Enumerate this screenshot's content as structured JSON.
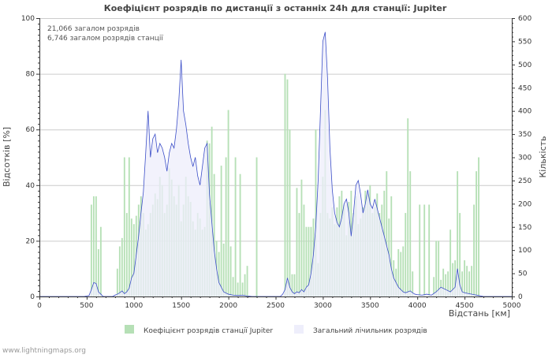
{
  "chart_data": {
    "type": "bar+line",
    "title": "Коефіцієнт розрядів по дистанції з останніх 24h для станції: Jupiter",
    "xlabel": "Відстань   [км]",
    "ylabel_left": "Відсотків   [%]",
    "ylabel_right": "Кількість",
    "xlim": [
      0,
      5000
    ],
    "ylim_left": [
      0,
      100
    ],
    "ylim_right": [
      0,
      600
    ],
    "x_ticks": [
      0,
      500,
      1000,
      1500,
      2000,
      2500,
      3000,
      3500,
      4000,
      4500,
      5000
    ],
    "y_left_ticks": [
      0,
      20,
      40,
      60,
      80,
      100
    ],
    "y_right_ticks": [
      0,
      50,
      100,
      150,
      200,
      250,
      300,
      350,
      400,
      450,
      500,
      550,
      600
    ],
    "annotations": [
      "21,066 загалом розрядів",
      "6,746 загалом розрядів станції"
    ],
    "bin_width_km": 25,
    "series": [
      {
        "name": "Коефіцієнт розрядів станції Jupiter",
        "kind": "bar",
        "axis": "left",
        "color": "#b6e0b6",
        "points": [
          [
            550,
            33
          ],
          [
            575,
            36
          ],
          [
            600,
            36
          ],
          [
            625,
            17
          ],
          [
            650,
            25
          ],
          [
            825,
            10
          ],
          [
            850,
            18
          ],
          [
            875,
            21
          ],
          [
            900,
            50
          ],
          [
            925,
            30
          ],
          [
            950,
            50
          ],
          [
            975,
            28
          ],
          [
            1000,
            26
          ],
          [
            1025,
            29
          ],
          [
            1050,
            33
          ],
          [
            1075,
            36
          ],
          [
            1100,
            30
          ],
          [
            1125,
            24
          ],
          [
            1150,
            26
          ],
          [
            1175,
            30
          ],
          [
            1200,
            33
          ],
          [
            1225,
            37
          ],
          [
            1250,
            35
          ],
          [
            1275,
            43
          ],
          [
            1300,
            40
          ],
          [
            1325,
            30
          ],
          [
            1350,
            33
          ],
          [
            1375,
            46
          ],
          [
            1400,
            42
          ],
          [
            1425,
            36
          ],
          [
            1450,
            33
          ],
          [
            1475,
            40
          ],
          [
            1500,
            27
          ],
          [
            1525,
            33
          ],
          [
            1550,
            43
          ],
          [
            1575,
            36
          ],
          [
            1600,
            34
          ],
          [
            1625,
            27
          ],
          [
            1650,
            24
          ],
          [
            1675,
            30
          ],
          [
            1700,
            28
          ],
          [
            1725,
            24
          ],
          [
            1750,
            25
          ],
          [
            1775,
            56
          ],
          [
            1800,
            55
          ],
          [
            1825,
            61
          ],
          [
            1850,
            44
          ],
          [
            1875,
            20
          ],
          [
            1900,
            16
          ],
          [
            1925,
            47
          ],
          [
            1950,
            19
          ],
          [
            1975,
            50
          ],
          [
            2000,
            67
          ],
          [
            2025,
            18
          ],
          [
            2050,
            7
          ],
          [
            2075,
            50
          ],
          [
            2100,
            5
          ],
          [
            2125,
            44
          ],
          [
            2150,
            5
          ],
          [
            2175,
            8
          ],
          [
            2200,
            11
          ],
          [
            2300,
            50
          ],
          [
            2600,
            80
          ],
          [
            2625,
            78
          ],
          [
            2650,
            60
          ],
          [
            2675,
            8
          ],
          [
            2700,
            8
          ],
          [
            2725,
            39
          ],
          [
            2750,
            30
          ],
          [
            2775,
            42
          ],
          [
            2800,
            33
          ],
          [
            2825,
            25
          ],
          [
            2850,
            25
          ],
          [
            2875,
            25
          ],
          [
            2900,
            28
          ],
          [
            2925,
            60
          ],
          [
            2950,
            12
          ],
          [
            2975,
            30
          ],
          [
            3000,
            43
          ],
          [
            3025,
            67
          ],
          [
            3050,
            30
          ],
          [
            3075,
            28
          ],
          [
            3100,
            32
          ],
          [
            3125,
            26
          ],
          [
            3150,
            32
          ],
          [
            3175,
            36
          ],
          [
            3200,
            38
          ],
          [
            3225,
            33
          ],
          [
            3250,
            22
          ],
          [
            3275,
            34
          ],
          [
            3300,
            38
          ],
          [
            3325,
            30
          ],
          [
            3350,
            36
          ],
          [
            3375,
            26
          ],
          [
            3400,
            28
          ],
          [
            3425,
            32
          ],
          [
            3450,
            38
          ],
          [
            3475,
            37
          ],
          [
            3500,
            40
          ],
          [
            3525,
            30
          ],
          [
            3550,
            32
          ],
          [
            3575,
            37
          ],
          [
            3600,
            30
          ],
          [
            3625,
            33
          ],
          [
            3650,
            38
          ],
          [
            3675,
            45
          ],
          [
            3700,
            28
          ],
          [
            3725,
            36
          ],
          [
            3750,
            13
          ],
          [
            3775,
            10
          ],
          [
            3800,
            17
          ],
          [
            3825,
            16
          ],
          [
            3850,
            18
          ],
          [
            3875,
            30
          ],
          [
            3900,
            64
          ],
          [
            3925,
            45
          ],
          [
            3950,
            9
          ],
          [
            4025,
            33
          ],
          [
            4075,
            33
          ],
          [
            4125,
            33
          ],
          [
            4175,
            7
          ],
          [
            4200,
            20
          ],
          [
            4225,
            20
          ],
          [
            4250,
            6
          ],
          [
            4275,
            10
          ],
          [
            4300,
            8
          ],
          [
            4325,
            9
          ],
          [
            4350,
            24
          ],
          [
            4375,
            12
          ],
          [
            4400,
            13
          ],
          [
            4425,
            45
          ],
          [
            4450,
            30
          ],
          [
            4475,
            9
          ],
          [
            4500,
            13
          ],
          [
            4525,
            11
          ],
          [
            4550,
            9
          ],
          [
            4575,
            11
          ],
          [
            4600,
            33
          ],
          [
            4625,
            45
          ],
          [
            4650,
            50
          ]
        ]
      },
      {
        "name": "Загальний лічильник розрядів",
        "kind": "line-area",
        "axis": "right",
        "fill": "#eeeefb",
        "stroke": "#3c4fc8",
        "points": [
          [
            0,
            0
          ],
          [
            475,
            0
          ],
          [
            525,
            2
          ],
          [
            550,
            15
          ],
          [
            575,
            30
          ],
          [
            600,
            28
          ],
          [
            625,
            10
          ],
          [
            650,
            5
          ],
          [
            675,
            0
          ],
          [
            775,
            0
          ],
          [
            800,
            3
          ],
          [
            825,
            5
          ],
          [
            850,
            8
          ],
          [
            875,
            12
          ],
          [
            900,
            6
          ],
          [
            925,
            10
          ],
          [
            950,
            18
          ],
          [
            975,
            40
          ],
          [
            1000,
            50
          ],
          [
            1025,
            90
          ],
          [
            1050,
            130
          ],
          [
            1075,
            180
          ],
          [
            1100,
            225
          ],
          [
            1125,
            310
          ],
          [
            1150,
            400
          ],
          [
            1175,
            300
          ],
          [
            1200,
            340
          ],
          [
            1225,
            350
          ],
          [
            1250,
            310
          ],
          [
            1275,
            330
          ],
          [
            1300,
            320
          ],
          [
            1325,
            300
          ],
          [
            1350,
            270
          ],
          [
            1375,
            310
          ],
          [
            1400,
            330
          ],
          [
            1425,
            320
          ],
          [
            1450,
            360
          ],
          [
            1475,
            420
          ],
          [
            1500,
            510
          ],
          [
            1525,
            400
          ],
          [
            1550,
            370
          ],
          [
            1575,
            330
          ],
          [
            1600,
            300
          ],
          [
            1625,
            280
          ],
          [
            1650,
            300
          ],
          [
            1675,
            260
          ],
          [
            1700,
            240
          ],
          [
            1725,
            280
          ],
          [
            1750,
            320
          ],
          [
            1775,
            330
          ],
          [
            1800,
            220
          ],
          [
            1825,
            160
          ],
          [
            1850,
            100
          ],
          [
            1875,
            60
          ],
          [
            1900,
            30
          ],
          [
            1925,
            20
          ],
          [
            1950,
            10
          ],
          [
            2000,
            5
          ],
          [
            2050,
            3
          ],
          [
            2100,
            2
          ],
          [
            2150,
            3
          ],
          [
            2200,
            1
          ],
          [
            2250,
            0
          ],
          [
            2550,
            0
          ],
          [
            2575,
            5
          ],
          [
            2600,
            15
          ],
          [
            2625,
            40
          ],
          [
            2650,
            20
          ],
          [
            2675,
            10
          ],
          [
            2700,
            6
          ],
          [
            2725,
            10
          ],
          [
            2750,
            8
          ],
          [
            2775,
            15
          ],
          [
            2800,
            10
          ],
          [
            2825,
            20
          ],
          [
            2850,
            25
          ],
          [
            2875,
            50
          ],
          [
            2900,
            90
          ],
          [
            2925,
            150
          ],
          [
            2950,
            250
          ],
          [
            2975,
            400
          ],
          [
            3000,
            550
          ],
          [
            3025,
            570
          ],
          [
            3050,
            470
          ],
          [
            3075,
            320
          ],
          [
            3100,
            230
          ],
          [
            3125,
            180
          ],
          [
            3150,
            160
          ],
          [
            3175,
            150
          ],
          [
            3200,
            170
          ],
          [
            3225,
            200
          ],
          [
            3250,
            210
          ],
          [
            3275,
            180
          ],
          [
            3300,
            130
          ],
          [
            3325,
            180
          ],
          [
            3350,
            240
          ],
          [
            3375,
            250
          ],
          [
            3400,
            220
          ],
          [
            3425,
            180
          ],
          [
            3450,
            200
          ],
          [
            3475,
            230
          ],
          [
            3500,
            200
          ],
          [
            3525,
            190
          ],
          [
            3550,
            210
          ],
          [
            3575,
            190
          ],
          [
            3600,
            170
          ],
          [
            3625,
            150
          ],
          [
            3650,
            130
          ],
          [
            3675,
            110
          ],
          [
            3700,
            90
          ],
          [
            3725,
            60
          ],
          [
            3750,
            40
          ],
          [
            3775,
            30
          ],
          [
            3800,
            20
          ],
          [
            3825,
            15
          ],
          [
            3850,
            10
          ],
          [
            3875,
            8
          ],
          [
            3900,
            10
          ],
          [
            3925,
            12
          ],
          [
            3950,
            8
          ],
          [
            3975,
            5
          ],
          [
            4000,
            4
          ],
          [
            4050,
            3
          ],
          [
            4100,
            5
          ],
          [
            4150,
            3
          ],
          [
            4200,
            10
          ],
          [
            4250,
            20
          ],
          [
            4300,
            15
          ],
          [
            4350,
            10
          ],
          [
            4400,
            20
          ],
          [
            4425,
            60
          ],
          [
            4450,
            25
          ],
          [
            4475,
            10
          ],
          [
            4500,
            8
          ],
          [
            4550,
            6
          ],
          [
            4600,
            4
          ],
          [
            4650,
            2
          ],
          [
            4700,
            0
          ],
          [
            5000,
            0
          ]
        ]
      }
    ]
  },
  "legend": {
    "bar_label": "Коефіцієнт розрядів станції Jupiter",
    "line_label": "Загальний лічильник розрядів"
  },
  "footer": {
    "credit": "www.lightningmaps.org"
  }
}
